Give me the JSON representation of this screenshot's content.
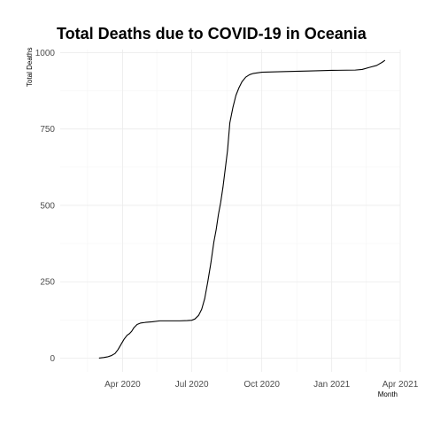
{
  "chart_data": {
    "type": "line",
    "title": "Total Deaths due to COVID-19 in Oceania",
    "xlabel": "Month",
    "ylabel": "Total Deaths",
    "x_type": "date",
    "xlim": [
      "2020-01-10",
      "2021-04-01"
    ],
    "ylim": [
      -45,
      1010
    ],
    "x_ticks": [
      {
        "value": "2020-04-01",
        "label": "Apr 2020"
      },
      {
        "value": "2020-07-01",
        "label": "Jul 2020"
      },
      {
        "value": "2020-10-01",
        "label": "Oct 2020"
      },
      {
        "value": "2021-01-01",
        "label": "Jan 2021"
      },
      {
        "value": "2021-04-01",
        "label": "Apr 2021"
      }
    ],
    "x_minor_ticks": [
      "2020-02-15",
      "2020-05-16",
      "2020-08-16",
      "2020-11-16",
      "2021-02-15"
    ],
    "y_ticks": [
      0,
      250,
      500,
      750,
      1000
    ],
    "y_minor_ticks": [
      125,
      375,
      625,
      875
    ],
    "grid": true,
    "legend": "none",
    "series": [
      {
        "color": "#000000",
        "points": [
          [
            "2020-03-01",
            0
          ],
          [
            "2020-03-07",
            2
          ],
          [
            "2020-03-12",
            4
          ],
          [
            "2020-03-17",
            8
          ],
          [
            "2020-03-22",
            15
          ],
          [
            "2020-03-26",
            28
          ],
          [
            "2020-03-30",
            45
          ],
          [
            "2020-04-03",
            62
          ],
          [
            "2020-04-07",
            75
          ],
          [
            "2020-04-10",
            80
          ],
          [
            "2020-04-13",
            88
          ],
          [
            "2020-04-16",
            100
          ],
          [
            "2020-04-20",
            110
          ],
          [
            "2020-04-25",
            115
          ],
          [
            "2020-05-01",
            117
          ],
          [
            "2020-05-10",
            119
          ],
          [
            "2020-05-20",
            122
          ],
          [
            "2020-06-01",
            122
          ],
          [
            "2020-06-15",
            122
          ],
          [
            "2020-06-25",
            123
          ],
          [
            "2020-07-01",
            124
          ],
          [
            "2020-07-05",
            128
          ],
          [
            "2020-07-10",
            140
          ],
          [
            "2020-07-14",
            160
          ],
          [
            "2020-07-18",
            195
          ],
          [
            "2020-07-22",
            250
          ],
          [
            "2020-07-26",
            310
          ],
          [
            "2020-07-30",
            380
          ],
          [
            "2020-08-02",
            420
          ],
          [
            "2020-08-05",
            470
          ],
          [
            "2020-08-08",
            510
          ],
          [
            "2020-08-11",
            560
          ],
          [
            "2020-08-14",
            620
          ],
          [
            "2020-08-17",
            680
          ],
          [
            "2020-08-20",
            770
          ],
          [
            "2020-08-24",
            820
          ],
          [
            "2020-08-28",
            860
          ],
          [
            "2020-09-01",
            885
          ],
          [
            "2020-09-05",
            905
          ],
          [
            "2020-09-10",
            920
          ],
          [
            "2020-09-15",
            928
          ],
          [
            "2020-09-20",
            932
          ],
          [
            "2020-10-01",
            936
          ],
          [
            "2020-11-01",
            938
          ],
          [
            "2020-12-01",
            940
          ],
          [
            "2021-01-01",
            942
          ],
          [
            "2021-02-01",
            943
          ],
          [
            "2021-02-10",
            945
          ],
          [
            "2021-02-20",
            952
          ],
          [
            "2021-03-01",
            958
          ],
          [
            "2021-03-08",
            968
          ],
          [
            "2021-03-12",
            975
          ]
        ]
      }
    ]
  }
}
